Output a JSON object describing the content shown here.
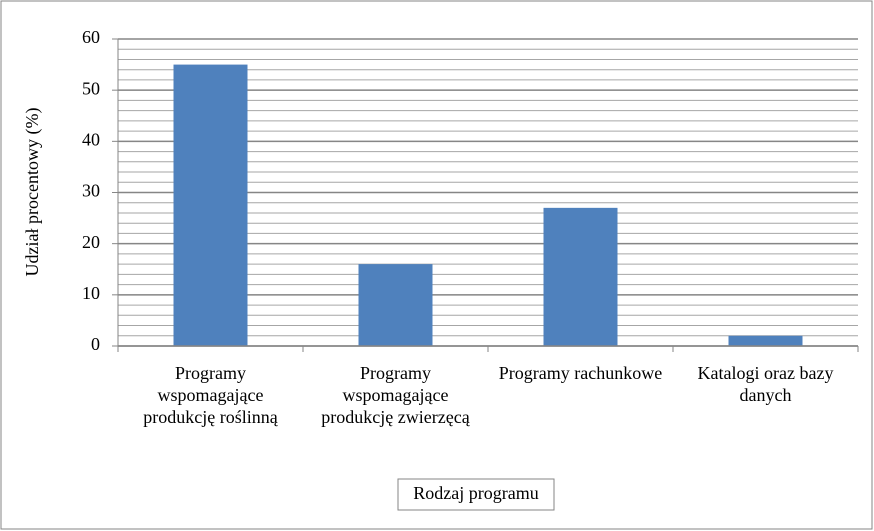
{
  "chart_data": {
    "type": "bar",
    "categories": [
      "Programy wspomagające produkcję roślinną",
      "Programy wspomagające produkcję zwierzęcą",
      "Programy rachunkowe",
      "Katalogi oraz bazy danych"
    ],
    "values": [
      55,
      16,
      27,
      2
    ],
    "color": "#4f81bd",
    "ylim": [
      0,
      60
    ],
    "yticks": [
      0,
      10,
      20,
      30,
      40,
      50,
      60
    ],
    "grid": true,
    "minor_grid_step": 2,
    "x_label": "Rodzaj programu",
    "y_label": "Udział procentowy (%)"
  }
}
